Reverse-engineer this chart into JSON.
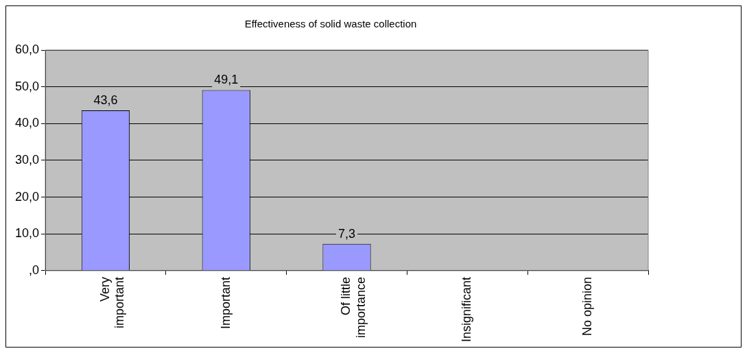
{
  "chart_data": {
    "type": "bar",
    "title": "Effectiveness of solid waste collection",
    "categories": [
      "Very important",
      "Important",
      "Of little importance",
      "Insignificant",
      "No opinion"
    ],
    "values": [
      43.6,
      49.1,
      7.3,
      0,
      0
    ],
    "value_labels": [
      "43,6",
      "49,1",
      "7,3",
      null,
      null
    ],
    "color": "#9999ff",
    "ylim": [
      0,
      60
    ],
    "yticks": [
      {
        "value": 0,
        "label": ",0"
      },
      {
        "value": 10,
        "label": "10,0"
      },
      {
        "value": 20,
        "label": "20,0"
      },
      {
        "value": 30,
        "label": "30,0"
      },
      {
        "value": 40,
        "label": "40,0"
      },
      {
        "value": 50,
        "label": "50,0"
      },
      {
        "value": 60,
        "label": "60,0"
      }
    ],
    "grid": "y",
    "legend": false
  }
}
